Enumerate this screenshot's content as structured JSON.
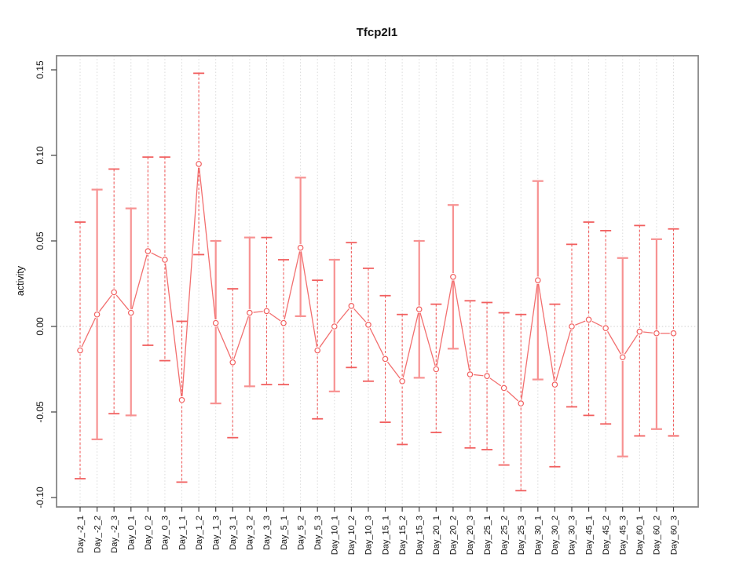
{
  "window": {
    "background": "#ffffff"
  },
  "chart_data": {
    "type": "line",
    "title": "Tfcp2l1",
    "xlabel": "",
    "ylabel": "activity",
    "legend": "none",
    "grid": "vertical dotted gridlines at every category; dotted horizontal reference line at 0",
    "ref_line": 0,
    "ylim": [
      -0.1055,
      0.1583
    ],
    "yticks": [
      0.15,
      0.1,
      0.05,
      0.0,
      -0.05,
      -0.1
    ],
    "ytick_labels": [
      "0.15",
      "0.10",
      "0.05",
      "0.00",
      "-0.05",
      "-0.10"
    ],
    "categories": [
      "Day_-2_1",
      "Day_-2_2",
      "Day_-2_3",
      "Day_0_1",
      "Day_0_2",
      "Day_0_3",
      "Day_1_1",
      "Day_1_2",
      "Day_1_3",
      "Day_3_1",
      "Day_3_2",
      "Day_3_3",
      "Day_5_1",
      "Day_5_2",
      "Day_5_3",
      "Day_10_1",
      "Day_10_2",
      "Day_10_3",
      "Day_15_1",
      "Day_15_2",
      "Day_15_3",
      "Day_20_1",
      "Day_20_2",
      "Day_20_3",
      "Day_25_1",
      "Day_25_2",
      "Day_25_3",
      "Day_30_1",
      "Day_30_2",
      "Day_30_3",
      "Day_45_1",
      "Day_45_2",
      "Day_45_3",
      "Day_60_1",
      "Day_60_2",
      "Day_60_3"
    ],
    "series": [
      {
        "name": "activity",
        "marker": "open-circle",
        "values": [
          -0.014,
          0.007,
          0.02,
          0.008,
          0.044,
          0.039,
          -0.043,
          0.095,
          0.002,
          -0.021,
          0.008,
          0.009,
          0.002,
          0.046,
          -0.014,
          0.0,
          0.012,
          0.001,
          -0.019,
          -0.032,
          0.01,
          -0.025,
          0.029,
          -0.028,
          -0.029,
          -0.036,
          -0.045,
          0.027,
          -0.034,
          0.0,
          0.004,
          -0.001,
          -0.018,
          -0.003,
          -0.004,
          -0.004
        ],
        "err_high": [
          0.061,
          0.08,
          0.092,
          0.069,
          0.099,
          0.099,
          0.003,
          0.148,
          0.05,
          0.022,
          0.052,
          0.052,
          0.039,
          0.087,
          0.027,
          0.039,
          0.049,
          0.034,
          0.018,
          0.007,
          0.05,
          0.013,
          0.071,
          0.015,
          0.014,
          0.008,
          0.007,
          0.085,
          0.013,
          0.048,
          0.061,
          0.056,
          0.04,
          0.059,
          0.051,
          0.057
        ],
        "err_low": [
          -0.089,
          -0.066,
          -0.051,
          -0.052,
          -0.011,
          -0.02,
          -0.091,
          0.042,
          -0.045,
          -0.065,
          -0.035,
          -0.034,
          -0.034,
          0.006,
          -0.054,
          -0.038,
          -0.024,
          -0.032,
          -0.056,
          -0.069,
          -0.03,
          -0.062,
          -0.013,
          -0.071,
          -0.072,
          -0.081,
          -0.096,
          -0.031,
          -0.082,
          -0.047,
          -0.052,
          -0.057,
          -0.076,
          -0.064,
          -0.06,
          -0.064
        ],
        "bar_styles": [
          "dashed",
          "solid",
          "dashed",
          "solid",
          "dashed",
          "dashed",
          "dashed",
          "dashed",
          "solid",
          "dashed",
          "solid",
          "dashed",
          "dashed",
          "solid",
          "dashed",
          "solid",
          "dashed",
          "dashed",
          "dashed",
          "dashed",
          "solid",
          "dashed",
          "solid",
          "dashed",
          "dashed",
          "dashed",
          "dashed",
          "solid",
          "dashed",
          "dashed",
          "dashed",
          "dashed",
          "solid",
          "dashed",
          "solid",
          "dashed"
        ]
      }
    ],
    "colors": {
      "series": "#f15f5f",
      "series_light": "#f79292",
      "grid": "#dadada",
      "ref_line": "#cfcfcf",
      "frame": "#878787",
      "tick": "#404040",
      "text": "#111111"
    }
  }
}
